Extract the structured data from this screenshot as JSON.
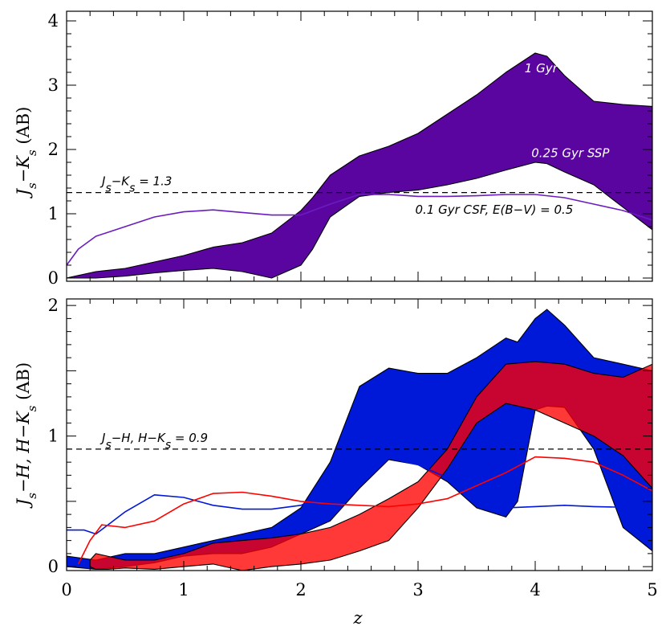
{
  "chart_data": [
    {
      "type": "area",
      "panel": "top",
      "xlim": [
        0,
        5
      ],
      "ylim": [
        -0.05,
        4.15
      ],
      "xticks": [
        0,
        1,
        2,
        3,
        4,
        5
      ],
      "yticks": [
        0,
        1,
        2,
        3,
        4
      ],
      "ylabel": {
        "main": "J",
        "sub1": "s",
        "mid": "−K",
        "sub2": "s",
        "unit": " (AB)"
      },
      "threshold": {
        "y": 1.33,
        "label": "J_s−K_s = 1.3"
      },
      "bands": [
        {
          "name": "1 Gyr / 0.25 Gyr SSP",
          "color": "#5a05a0",
          "x": [
            0,
            0.25,
            0.5,
            0.75,
            1.0,
            1.25,
            1.5,
            1.75,
            2.0,
            2.1,
            2.25,
            2.5,
            2.75,
            3.0,
            3.25,
            3.5,
            3.75,
            4.0,
            4.1,
            4.25,
            4.5,
            4.75,
            5.0
          ],
          "upper": [
            0,
            0.1,
            0.15,
            0.25,
            0.35,
            0.48,
            0.55,
            0.7,
            1.05,
            1.25,
            1.6,
            1.9,
            2.05,
            2.25,
            2.55,
            2.85,
            3.2,
            3.5,
            3.45,
            3.15,
            2.75,
            2.7,
            2.67
          ],
          "lower": [
            0,
            0,
            0.03,
            0.08,
            0.12,
            0.15,
            0.1,
            0.0,
            0.2,
            0.45,
            0.95,
            1.27,
            1.33,
            1.37,
            1.45,
            1.55,
            1.68,
            1.8,
            1.78,
            1.65,
            1.45,
            1.1,
            0.75
          ]
        }
      ],
      "series": [
        {
          "name": "0.1 Gyr CSF, E(B−V) = 0.5",
          "color": "#6a1cc0",
          "x": [
            0,
            0.1,
            0.25,
            0.5,
            0.75,
            1.0,
            1.25,
            1.5,
            1.75,
            2.0,
            2.25,
            2.5,
            2.75,
            3.0,
            3.25,
            3.5,
            3.75,
            4.0,
            4.25,
            4.5,
            4.75,
            5.0
          ],
          "y": [
            0.2,
            0.45,
            0.65,
            0.8,
            0.95,
            1.03,
            1.06,
            1.02,
            0.98,
            0.98,
            1.15,
            1.3,
            1.3,
            1.27,
            1.27,
            1.28,
            1.3,
            1.3,
            1.25,
            1.15,
            1.05,
            0.9
          ]
        }
      ],
      "annotations": [
        {
          "text": "1   Gyr",
          "x": 4.05,
          "y": 3.2,
          "color": "#ffffff"
        },
        {
          "text": "0.25 Gyr SSP",
          "x": 4.3,
          "y": 1.88,
          "color": "#ffffff"
        },
        {
          "text": "0.1 Gyr CSF, E(B−V) = 0.5",
          "x": 3.65,
          "y": 1.0,
          "color": "#000000"
        }
      ]
    },
    {
      "type": "area",
      "panel": "bottom",
      "xlim": [
        0,
        5
      ],
      "ylim": [
        -0.03,
        2.05
      ],
      "xticks": [
        0,
        1,
        2,
        3,
        4,
        5
      ],
      "yticks": [
        0,
        1,
        2
      ],
      "xlabel": "z",
      "ylabel": {
        "main": "J",
        "sub1": "s",
        "mid": "−H, H−K",
        "sub2": "s",
        "unit": " (AB)"
      },
      "threshold": {
        "y": 0.9,
        "label": "J_s−H, H−K_s = 0.9"
      },
      "bands": [
        {
          "name": "J_s−H band",
          "color": "#0018d8",
          "opacity": 1.0,
          "x": [
            0,
            0.25,
            0.5,
            0.75,
            1.0,
            1.25,
            1.5,
            1.75,
            2.0,
            2.25,
            2.5,
            2.75,
            3.0,
            3.25,
            3.5,
            3.75,
            3.85,
            4.0,
            4.1,
            4.25,
            4.5,
            4.75,
            5.0
          ],
          "upper": [
            0.08,
            0.05,
            0.1,
            0.1,
            0.15,
            0.2,
            0.25,
            0.3,
            0.45,
            0.8,
            1.38,
            1.52,
            1.48,
            1.48,
            1.6,
            1.75,
            1.72,
            1.9,
            1.97,
            1.85,
            1.6,
            1.55,
            1.5
          ],
          "lower": [
            0,
            -0.02,
            0,
            0.03,
            0.08,
            0.1,
            0.1,
            0.15,
            0.25,
            0.35,
            0.6,
            0.82,
            0.78,
            0.65,
            0.45,
            0.38,
            0.5,
            1.2,
            1.23,
            1.22,
            0.9,
            0.3,
            0.12
          ]
        },
        {
          "name": "H−K_s band",
          "color": "#ff0000",
          "opacity": 0.78,
          "x": [
            0.2,
            0.25,
            0.35,
            0.5,
            0.75,
            1.0,
            1.25,
            1.5,
            1.75,
            2.0,
            2.25,
            2.5,
            2.75,
            3.0,
            3.25,
            3.5,
            3.75,
            4.0,
            4.25,
            4.5,
            4.75,
            5.0
          ],
          "upper": [
            0.05,
            0.1,
            0.08,
            0.05,
            0.05,
            0.1,
            0.18,
            0.2,
            0.22,
            0.25,
            0.3,
            0.4,
            0.52,
            0.65,
            0.9,
            1.3,
            1.55,
            1.57,
            1.55,
            1.48,
            1.45,
            1.55
          ],
          "lower": [
            0,
            -0.02,
            -0.02,
            -0.01,
            -0.02,
            0,
            0.02,
            -0.03,
            0,
            0.02,
            0.05,
            0.12,
            0.2,
            0.45,
            0.75,
            1.1,
            1.25,
            1.2,
            1.1,
            1.0,
            0.85,
            0.6
          ]
        }
      ],
      "series": [
        {
          "name": "J_s−H (CSF)",
          "color": "#0018d8",
          "x": [
            0,
            0.15,
            0.25,
            0.5,
            0.75,
            1.0,
            1.25,
            1.5,
            1.75,
            2.0,
            2.25,
            2.5,
            2.6,
            2.75,
            3.0,
            3.25,
            3.5,
            3.75,
            4.0,
            4.25,
            4.5,
            5.0
          ],
          "y": [
            0.28,
            0.28,
            0.25,
            0.42,
            0.55,
            0.53,
            0.47,
            0.44,
            0.44,
            0.47,
            0.57,
            0.77,
            0.83,
            0.83,
            0.78,
            0.68,
            0.52,
            0.45,
            0.46,
            0.47,
            0.46,
            0.45
          ]
        },
        {
          "name": "H−K_s (CSF)",
          "color": "#ff0000",
          "x": [
            0.1,
            0.2,
            0.3,
            0.5,
            0.75,
            1.0,
            1.25,
            1.5,
            1.75,
            2.0,
            2.25,
            2.5,
            2.75,
            3.0,
            3.25,
            3.5,
            3.75,
            4.0,
            4.25,
            4.5,
            4.75,
            5.0
          ],
          "y": [
            0.02,
            0.2,
            0.32,
            0.3,
            0.35,
            0.48,
            0.56,
            0.57,
            0.54,
            0.5,
            0.48,
            0.47,
            0.46,
            0.48,
            0.52,
            0.62,
            0.72,
            0.84,
            0.83,
            0.8,
            0.7,
            0.58
          ]
        }
      ],
      "annotations": []
    }
  ]
}
